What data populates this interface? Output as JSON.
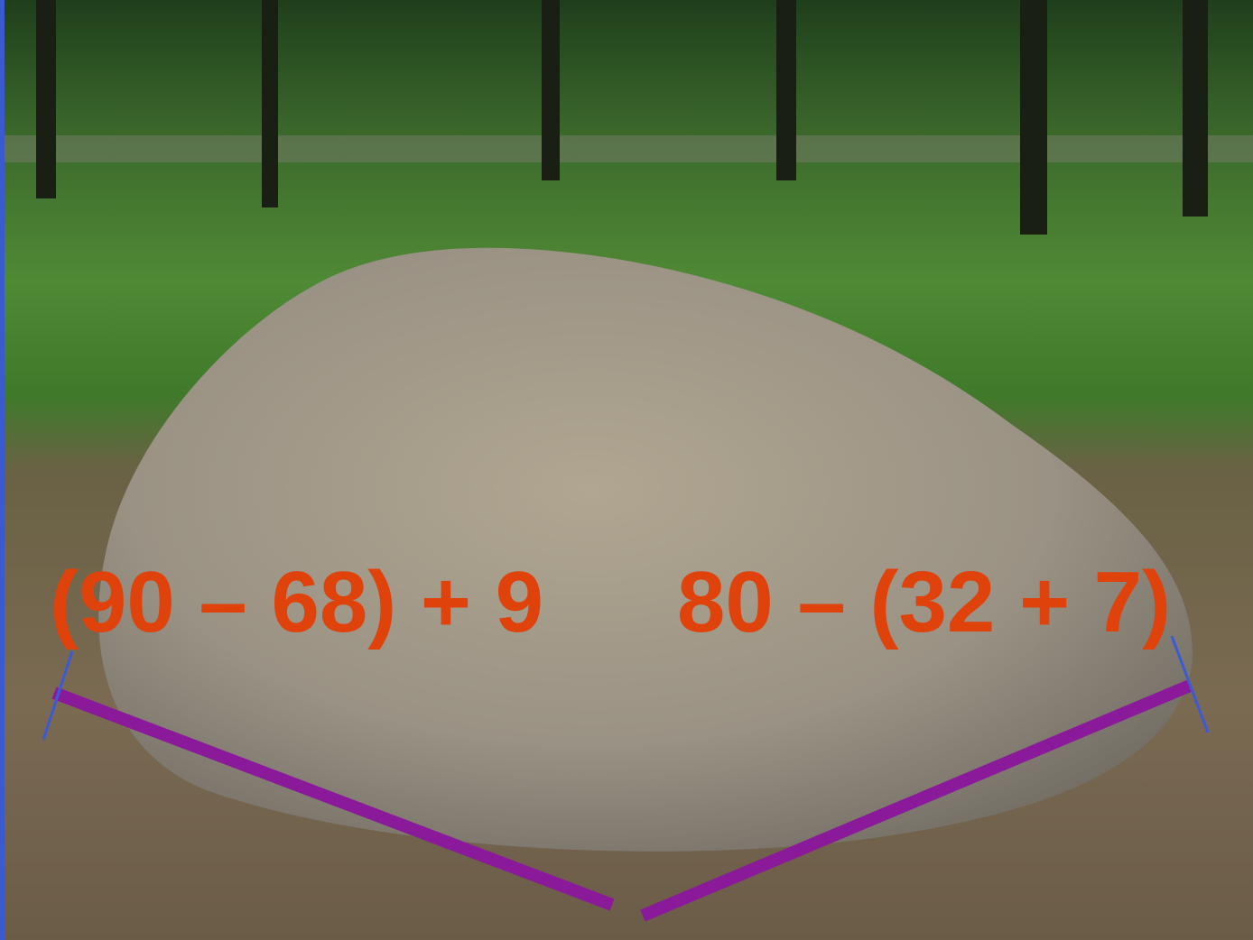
{
  "expressions": [
    "(90 – 68) + 9",
    "80 – (32 + 7)"
  ]
}
